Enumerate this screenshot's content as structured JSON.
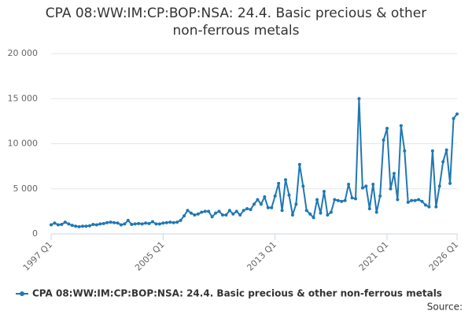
{
  "chart_data": {
    "type": "line",
    "title": "CPA 08:WW:IM:CP:BOP:NSA: 24.4. Basic precious & other non-ferrous metals",
    "source": "Source:",
    "categories": [
      "1997 Q1",
      null,
      null,
      null,
      null,
      null,
      null,
      null,
      null,
      null,
      null,
      null,
      null,
      null,
      null,
      null,
      null,
      null,
      null,
      null,
      null,
      null,
      null,
      null,
      null,
      null,
      null,
      null,
      null,
      null,
      null,
      null,
      "2005 Q1",
      null,
      null,
      null,
      null,
      null,
      null,
      null,
      null,
      null,
      null,
      null,
      null,
      null,
      null,
      null,
      null,
      null,
      null,
      null,
      null,
      null,
      null,
      null,
      null,
      null,
      null,
      null,
      null,
      null,
      null,
      null,
      "2013 Q1",
      null,
      null,
      null,
      null,
      null,
      null,
      null,
      null,
      null,
      null,
      null,
      null,
      null,
      null,
      null,
      null,
      null,
      null,
      null,
      null,
      null,
      null,
      null,
      null,
      null,
      null,
      null,
      null,
      null,
      null,
      null,
      "2021 Q1",
      null,
      null,
      null,
      null,
      null,
      null,
      null,
      null,
      null,
      null,
      null,
      null,
      null,
      null,
      null,
      null,
      null,
      null,
      null,
      "2026 Q1"
    ],
    "series": [
      {
        "name": "CPA 08:WW:IM:CP:BOP:NSA: 24.4. Basic precious & other non-ferrous metals",
        "color": "#1f78b4",
        "values": [
          1000,
          1200,
          1000,
          1050,
          1300,
          1100,
          950,
          850,
          800,
          850,
          850,
          900,
          1050,
          1000,
          1100,
          1150,
          1250,
          1300,
          1250,
          1200,
          1000,
          1100,
          1500,
          1050,
          1100,
          1150,
          1100,
          1200,
          1150,
          1350,
          1100,
          1100,
          1200,
          1250,
          1300,
          1250,
          1300,
          1500,
          2000,
          2600,
          2300,
          2100,
          2200,
          2400,
          2500,
          2500,
          1900,
          2300,
          2500,
          2100,
          2100,
          2600,
          2200,
          2500,
          2100,
          2600,
          2800,
          2700,
          3300,
          3800,
          3300,
          4100,
          2900,
          2900,
          4200,
          5600,
          2600,
          6000,
          4300,
          2100,
          3300,
          7700,
          5300,
          2600,
          2200,
          1800,
          3800,
          2300,
          4700,
          2100,
          2400,
          3800,
          3700,
          3600,
          3700,
          5500,
          4000,
          3900,
          15000,
          5100,
          5300,
          2800,
          5500,
          2400,
          4200,
          10400,
          11700,
          5000,
          6700,
          3800,
          12000,
          9200,
          3500,
          3700,
          3700,
          3800,
          3600,
          3200,
          3000,
          9200,
          3000,
          5300,
          8000,
          9300,
          5600,
          12800,
          13300
        ]
      }
    ],
    "ylim": [
      0,
      20000
    ],
    "yticks": [
      0,
      {
        "value": 5000,
        "label": "5 000"
      },
      {
        "value": 10000,
        "label": "10 000"
      },
      {
        "value": 15000,
        "label": "15 000"
      },
      {
        "value": 20000,
        "label": "20 000"
      }
    ],
    "grid": true
  }
}
